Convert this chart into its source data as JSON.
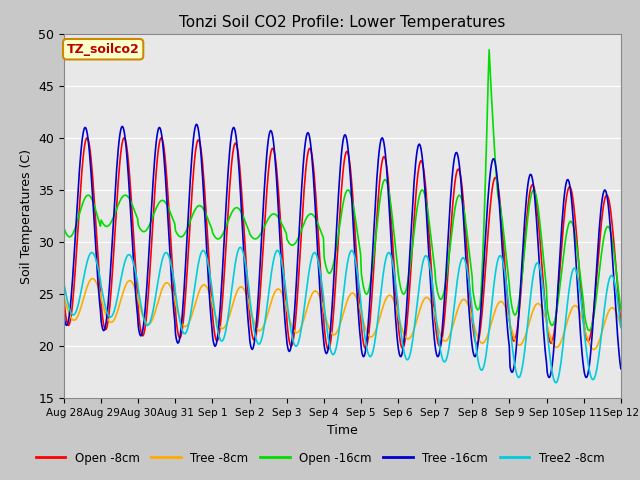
{
  "title": "Tonzi Soil CO2 Profile: Lower Temperatures",
  "xlabel": "Time",
  "ylabel": "Soil Temperatures (C)",
  "ylim": [
    15,
    50
  ],
  "yticks": [
    15,
    20,
    25,
    30,
    35,
    40,
    45,
    50
  ],
  "plot_bg_color": "#e8e8e8",
  "fig_bg_color": "#c8c8c8",
  "legend_label": "TZ_soilco2",
  "series": [
    {
      "label": "Open -8cm",
      "color": "#ff0000"
    },
    {
      "label": "Tree -8cm",
      "color": "#ffaa00"
    },
    {
      "label": "Open -16cm",
      "color": "#00dd00"
    },
    {
      "label": "Tree -16cm",
      "color": "#0000cc"
    },
    {
      "label": "Tree2 -8cm",
      "color": "#00ccdd"
    }
  ],
  "xtick_labels": [
    "Aug 28",
    "Aug 29",
    "Aug 30",
    "Aug 31",
    "Sep 1",
    "Sep 2",
    "Sep 3",
    "Sep 4",
    "Sep 5",
    "Sep 6",
    "Sep 7",
    "Sep 8",
    "Sep 9",
    "Sep 10",
    "Sep 11",
    "Sep 12"
  ],
  "num_days": 15,
  "pts_per_day": 48
}
